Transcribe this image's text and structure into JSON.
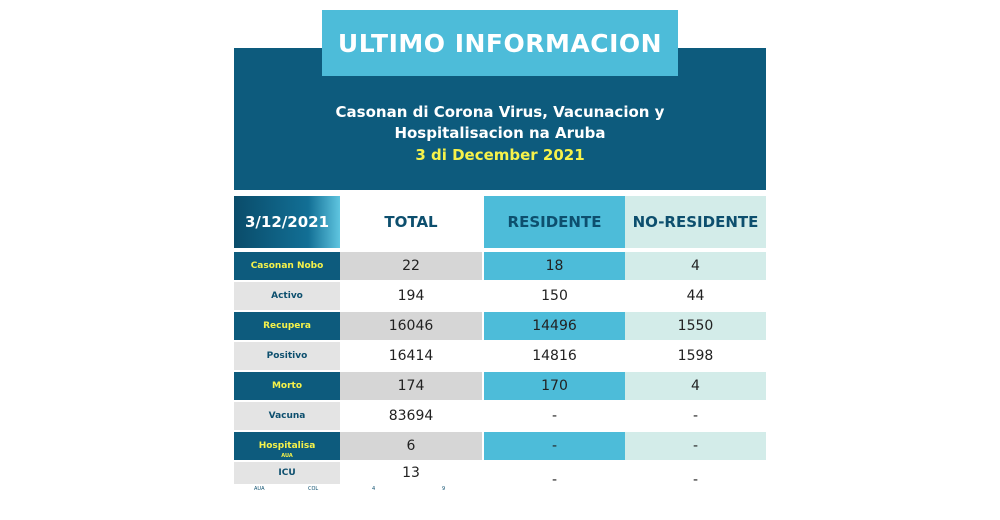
{
  "banner": "ULTIMO INFORMACION",
  "header": {
    "line1": "Casonan di Corona Virus, Vacunacion y",
    "line2": "Hospitalisacion na Aruba",
    "date": "3 di December 2021"
  },
  "table": {
    "headers": [
      "3/12/2021",
      "TOTAL",
      "RESIDENTE",
      "NO-RESIDENTE"
    ],
    "rows": [
      {
        "label": "Casonan Nobo",
        "total": "22",
        "residente": "18",
        "no_residente": "4"
      },
      {
        "label": "Activo",
        "total": "194",
        "residente": "150",
        "no_residente": "44"
      },
      {
        "label": "Recupera",
        "total": "16046",
        "residente": "14496",
        "no_residente": "1550"
      },
      {
        "label": "Positivo",
        "total": "16414",
        "residente": "14816",
        "no_residente": "1598"
      },
      {
        "label": "Morto",
        "total": "174",
        "residente": "170",
        "no_residente": "4"
      },
      {
        "label": "Vacuna",
        "total": "83694",
        "residente": "-",
        "no_residente": "-"
      },
      {
        "label": "Hospitalisa",
        "sublabel": "AUA",
        "total": "6",
        "residente": "-",
        "no_residente": "-"
      },
      {
        "label": "ICU",
        "total": "13",
        "residente": "-",
        "no_residente": "-"
      }
    ],
    "icu_sub": {
      "aua_label": "AUA",
      "col_label": "COL",
      "aua_value": "4",
      "col_value": "9"
    }
  },
  "colors": {
    "banner": "#4dbcd9",
    "header_bg": "#0d5b7d",
    "date_text": "#f6f24a",
    "residente_col": "#4dbcd9",
    "no_residente_col": "#d3ece9"
  }
}
